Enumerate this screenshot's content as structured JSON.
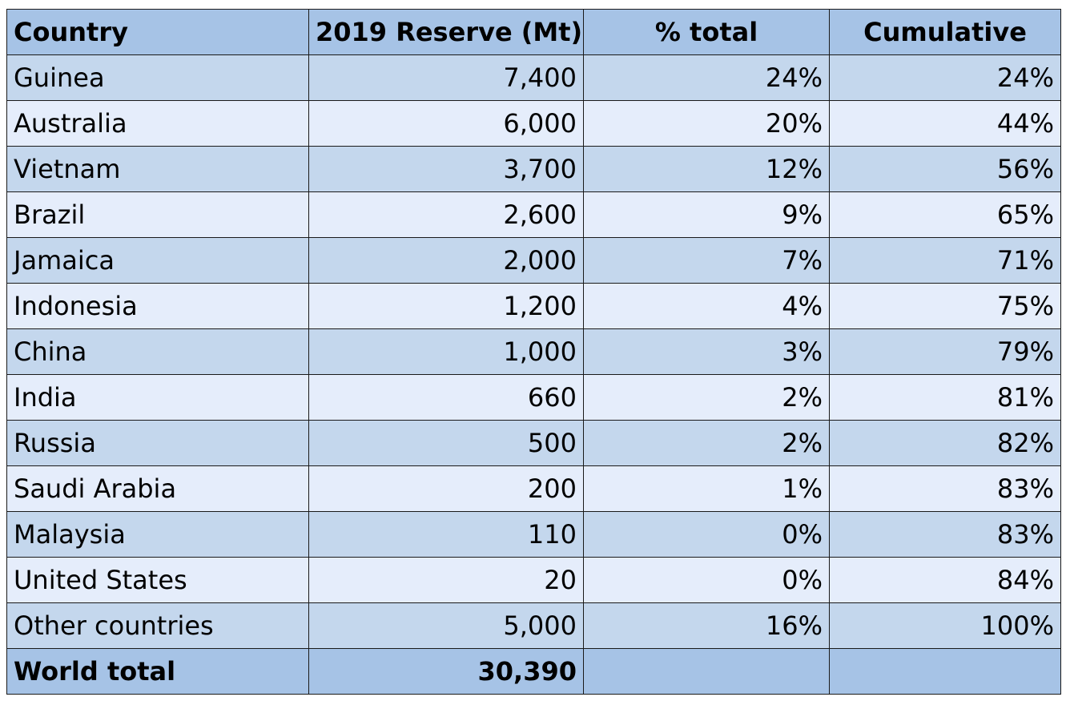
{
  "table": {
    "header": [
      "Country",
      "2019 Reserve (Mt)",
      "% total",
      "Cumulative"
    ],
    "rows": [
      [
        "Guinea",
        "7,400",
        "24%",
        "24%"
      ],
      [
        "Australia",
        "6,000",
        "20%",
        "44%"
      ],
      [
        "Vietnam",
        "3,700",
        "12%",
        "56%"
      ],
      [
        "Brazil",
        "2,600",
        "9%",
        "65%"
      ],
      [
        "Jamaica",
        "2,000",
        "7%",
        "71%"
      ],
      [
        "Indonesia",
        "1,200",
        "4%",
        "75%"
      ],
      [
        "China",
        "1,000",
        "3%",
        "79%"
      ],
      [
        "India",
        "660",
        "2%",
        "81%"
      ],
      [
        "Russia",
        "500",
        "2%",
        "82%"
      ],
      [
        "Saudi Arabia",
        "200",
        "1%",
        "83%"
      ],
      [
        "Malaysia",
        "110",
        "0%",
        "83%"
      ],
      [
        "United States",
        "20",
        "0%",
        "84%"
      ],
      [
        "Other countries",
        "5,000",
        "16%",
        "100%"
      ]
    ],
    "total": [
      "World total",
      "30,390"
    ]
  }
}
